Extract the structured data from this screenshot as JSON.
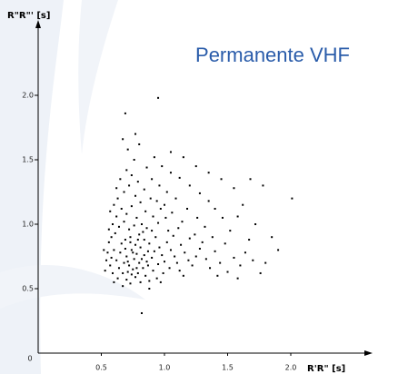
{
  "chart_data": {
    "type": "scatter",
    "title": "Permanente VHF",
    "x_label": "R'R\" [s]",
    "y_label": "R\"R\"' [s]",
    "color": "#000000",
    "title_color": "#2a5caa",
    "xlim": [
      0,
      2.63
    ],
    "ylim": [
      0,
      2.54
    ],
    "xticks": [
      0,
      {
        "value": 0.5,
        "label": "0.5"
      },
      {
        "value": 1,
        "label": "1.0"
      },
      {
        "value": 1.5,
        "label": "1.5"
      },
      {
        "value": 2,
        "label": "2.0"
      }
    ],
    "yticks": [
      {
        "value": 0.5,
        "label": "0.5"
      },
      {
        "value": 1,
        "label": "1.0"
      },
      {
        "value": 1.5,
        "label": "1.5"
      },
      {
        "value": 2,
        "label": "2.0"
      }
    ],
    "x": [
      0.62,
      0.65,
      0.68,
      0.7,
      0.72,
      0.74,
      0.76,
      0.78,
      0.8,
      0.66,
      0.69,
      0.73,
      0.77,
      0.81,
      0.84,
      0.86,
      0.64,
      0.67,
      0.71,
      0.75,
      0.79,
      0.83,
      0.87,
      0.9,
      0.92,
      0.6,
      0.58,
      0.57,
      0.61,
      0.64,
      0.68,
      0.72,
      0.76,
      0.8,
      0.84,
      0.88,
      0.93,
      0.96,
      0.98,
      1.0,
      0.63,
      0.7,
      0.77,
      0.85,
      0.91,
      0.95,
      0.59,
      0.55,
      0.56,
      0.62,
      0.66,
      0.7,
      0.74,
      0.78,
      0.82,
      0.86,
      0.9,
      0.95,
      1.02,
      1.05,
      1.08,
      1.1,
      1.04,
      0.99,
      0.73,
      0.81,
      0.67,
      0.88,
      0.94,
      1.12,
      0.63,
      0.68,
      0.72,
      0.77,
      0.81,
      0.85,
      0.91,
      0.97,
      1.03,
      1.07,
      1.13,
      1.16,
      1.19,
      1.22,
      1.15,
      1.25,
      1.28,
      1.2,
      1.11,
      1.01,
      0.65,
      0.7,
      0.74,
      0.79,
      0.84,
      0.89,
      0.94,
      1.0,
      1.06,
      1.14,
      1.24,
      1.3,
      1.33,
      1.36,
      1.4,
      1.44,
      1.38,
      1.32,
      1.26,
      1.18,
      1.09,
      1.02,
      0.96,
      0.9,
      0.86,
      0.76,
      0.71,
      0.8,
      0.67,
      0.77,
      0.69,
      0.95,
      2.01,
      0.82,
      1.76,
      1.5,
      1.55,
      1.6,
      1.48,
      1.52,
      1.46,
      1.4,
      1.35,
      1.28,
      1.2,
      1.12,
      1.05,
      0.98,
      0.92,
      1.58,
      1.64,
      1.7,
      1.67,
      1.62,
      1.55,
      1.45,
      1.35,
      1.25,
      1.15,
      1.05,
      0.6,
      0.58,
      0.59,
      0.56,
      0.54,
      0.53,
      0.52,
      0.57,
      0.6,
      0.62,
      0.74,
      0.78,
      0.82,
      0.69,
      0.73,
      0.75,
      0.71,
      0.79,
      0.83,
      0.87,
      1.72,
      1.8,
      1.85,
      1.78,
      1.68,
      1.9,
      1.42,
      1.58,
      0.88,
      0.97
    ],
    "y": [
      0.72,
      0.78,
      0.7,
      0.75,
      0.68,
      0.8,
      0.73,
      0.77,
      0.7,
      0.85,
      0.88,
      0.9,
      0.84,
      0.82,
      0.76,
      0.71,
      0.66,
      0.62,
      0.63,
      0.65,
      0.62,
      0.66,
      0.68,
      0.74,
      0.79,
      0.8,
      0.74,
      0.68,
      0.93,
      0.98,
      1.02,
      0.96,
      0.99,
      0.92,
      0.88,
      0.85,
      0.9,
      0.82,
      0.76,
      0.71,
      0.58,
      0.57,
      0.59,
      0.6,
      0.64,
      0.69,
      0.62,
      0.78,
      0.86,
      1.06,
      1.12,
      1.08,
      1.14,
      1.05,
      1.0,
      0.97,
      0.95,
      1.01,
      0.86,
      0.8,
      0.75,
      0.7,
      0.66,
      0.62,
      0.54,
      0.55,
      0.52,
      0.56,
      0.58,
      0.64,
      1.2,
      1.25,
      1.3,
      1.22,
      1.17,
      1.1,
      1.06,
      1.12,
      0.95,
      0.91,
      0.84,
      0.78,
      0.72,
      0.68,
      0.6,
      0.75,
      0.81,
      0.89,
      0.97,
      1.05,
      1.35,
      1.42,
      1.38,
      1.33,
      1.27,
      1.2,
      1.18,
      1.15,
      1.09,
      1.02,
      0.92,
      0.86,
      0.73,
      0.66,
      0.79,
      0.7,
      0.9,
      0.98,
      1.05,
      1.12,
      1.2,
      1.25,
      1.3,
      1.35,
      1.44,
      1.5,
      1.58,
      1.62,
      1.66,
      1.7,
      1.86,
      1.98,
      1.2,
      0.31,
      0.62,
      0.63,
      0.74,
      0.68,
      0.85,
      0.95,
      1.05,
      1.12,
      1.18,
      1.24,
      1.3,
      1.36,
      1.4,
      1.45,
      1.52,
      1.06,
      0.78,
      0.72,
      0.88,
      1.15,
      1.28,
      1.35,
      1.4,
      1.45,
      1.52,
      1.56,
      0.55,
      0.9,
      1.0,
      0.96,
      0.72,
      0.64,
      0.8,
      1.1,
      1.15,
      1.28,
      0.61,
      0.66,
      0.73,
      0.81,
      0.86,
      0.78,
      0.71,
      0.88,
      0.94,
      0.79,
      1.0,
      0.7,
      0.9,
      1.3,
      1.35,
      0.8,
      0.6,
      0.58,
      0.5,
      0.55
    ]
  }
}
